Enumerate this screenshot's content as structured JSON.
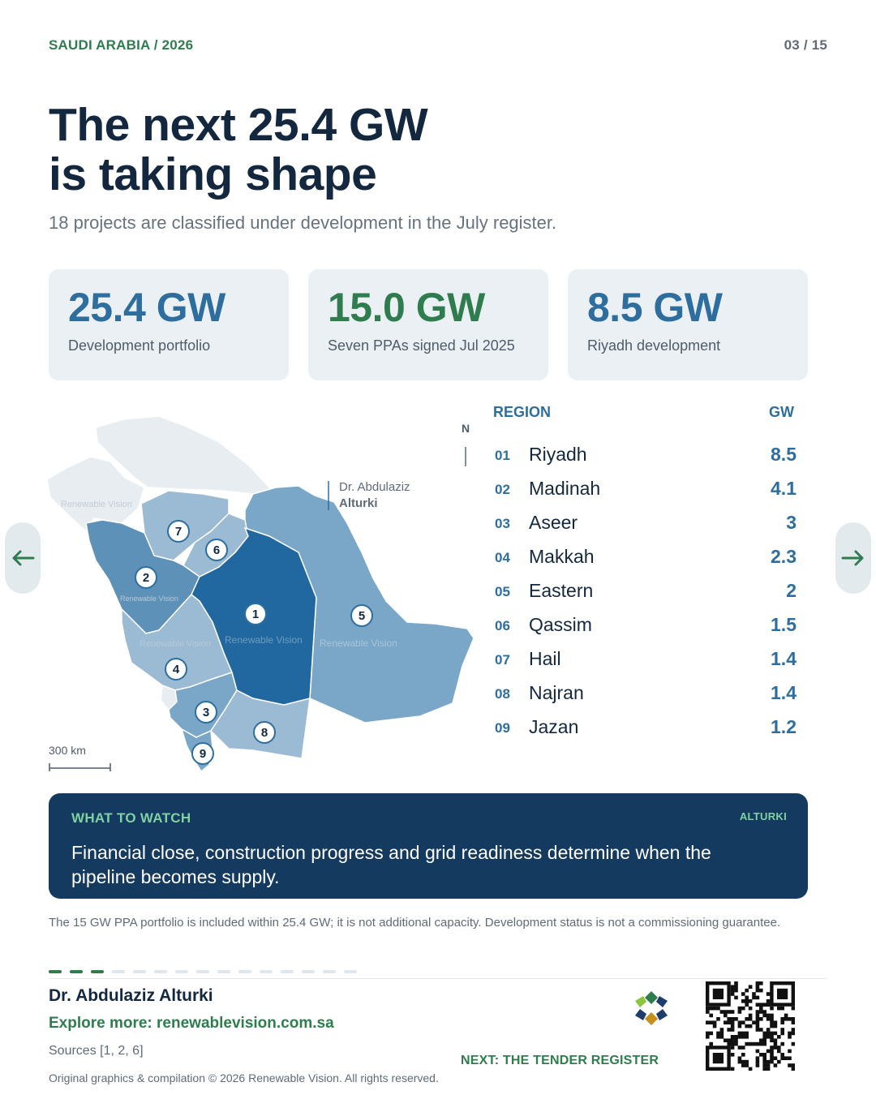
{
  "header": {
    "kicker": "SAUDI ARABIA / 2026",
    "page": "03 / 15"
  },
  "title": {
    "line1": "The next 25.4 GW",
    "line2": "is taking shape"
  },
  "subtitle": "18 projects are classified under development in the July register.",
  "stats": [
    {
      "value": "25.4 GW",
      "label": "Development portfolio",
      "color": "#2e6e9e"
    },
    {
      "value": "15.0 GW",
      "label": "Seven PPAs signed Jul 2025",
      "color": "#2f7d4f"
    },
    {
      "value": "8.5 GW",
      "label": "Riyadh development",
      "color": "#2e6e9e"
    }
  ],
  "map": {
    "compass": "N",
    "author_line1": "Dr. Abdulaziz",
    "author_line2": "Alturki",
    "watermark": "Renewable Vision",
    "scale_label": "300 km",
    "markers": [
      "1",
      "2",
      "3",
      "4",
      "5",
      "6",
      "7",
      "8",
      "9"
    ]
  },
  "table": {
    "header_region": "REGION",
    "header_gw": "GW",
    "rows": [
      {
        "num": "01",
        "name": "Riyadh",
        "gw": "8.5"
      },
      {
        "num": "02",
        "name": "Madinah",
        "gw": "4.1"
      },
      {
        "num": "03",
        "name": "Aseer",
        "gw": "3"
      },
      {
        "num": "04",
        "name": "Makkah",
        "gw": "2.3"
      },
      {
        "num": "05",
        "name": "Eastern",
        "gw": "2"
      },
      {
        "num": "06",
        "name": "Qassim",
        "gw": "1.5"
      },
      {
        "num": "07",
        "name": "Hail",
        "gw": "1.4"
      },
      {
        "num": "08",
        "name": "Najran",
        "gw": "1.4"
      },
      {
        "num": "09",
        "name": "Jazan",
        "gw": "1.2"
      }
    ]
  },
  "nav": {
    "prev_icon": "arrow-left-icon",
    "next_icon": "arrow-right-icon"
  },
  "watch": {
    "label": "WHAT TO WATCH",
    "brand": "ALTURKI",
    "text": "Financial close, construction progress and grid readiness determine when the pipeline becomes supply."
  },
  "note": "The 15 GW PPA portfolio is included within 25.4 GW; it is not additional capacity. Development status is not a commissioning guarantee.",
  "progress": {
    "current": 3,
    "total": 15
  },
  "footer": {
    "author": "Dr. Abdulaziz Alturki",
    "explore": "Explore more: renewablevision.com.sa",
    "sources": "Sources [1, 2, 6]",
    "copyright": "Original graphics & compilation © 2026 Renewable Vision. All rights reserved.",
    "next": "NEXT: THE TENDER REGISTER"
  },
  "colors": {
    "accent_blue": "#2e6e9e",
    "accent_green": "#2f7d4f",
    "navy": "#153a5f",
    "region_top": "#2268a0",
    "region_high": "#5e91b8",
    "region_mid": "#7aa7c8",
    "region_low": "#9bbad3",
    "region_none": "#e8edf1"
  }
}
